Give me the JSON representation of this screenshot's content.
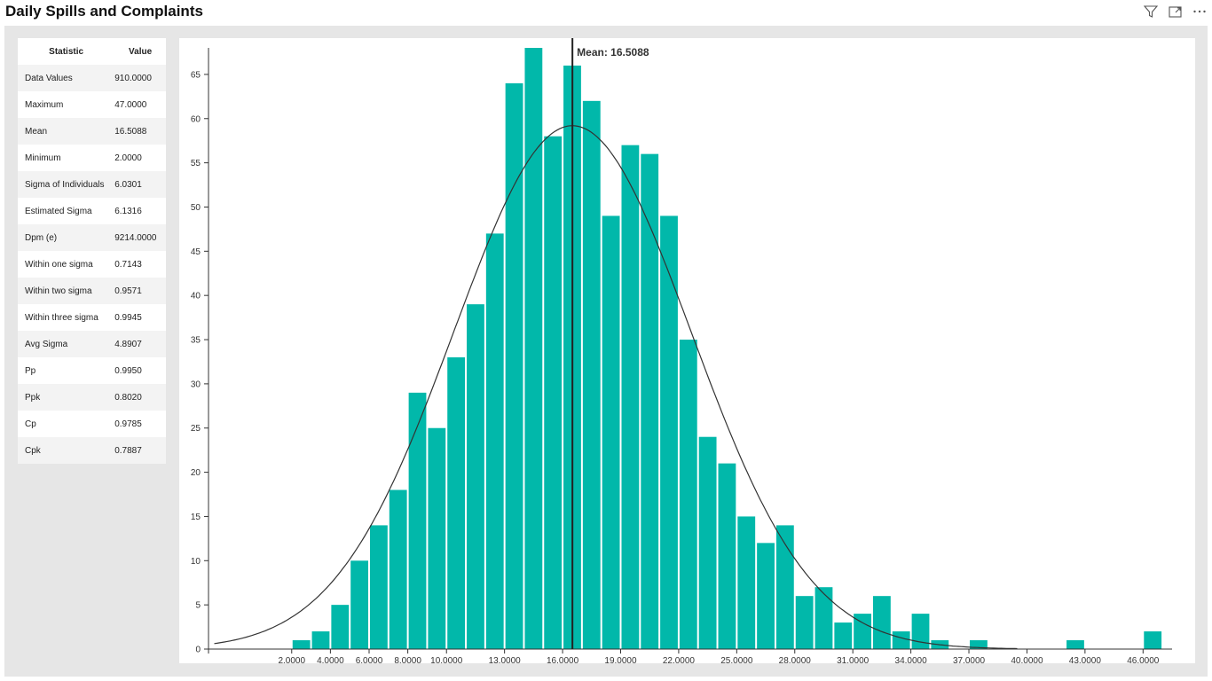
{
  "title": "Daily Spills and Complaints",
  "header_icons": [
    "filter-icon",
    "focus-mode-icon",
    "more-options-icon"
  ],
  "stats_table": {
    "headers": [
      "Statistic",
      "Value"
    ],
    "rows": [
      [
        "Data Values",
        "910.0000"
      ],
      [
        "Maximum",
        "47.0000"
      ],
      [
        "Mean",
        "16.5088"
      ],
      [
        "Minimum",
        "2.0000"
      ],
      [
        "Sigma of Individuals",
        "6.0301"
      ],
      [
        "Estimated Sigma",
        "6.1316"
      ],
      [
        "Dpm (e)",
        "9214.0000"
      ],
      [
        "Within one sigma",
        "0.7143"
      ],
      [
        "Within two sigma",
        "0.9571"
      ],
      [
        "Within three sigma",
        "0.9945"
      ],
      [
        "Avg Sigma",
        "4.8907"
      ],
      [
        "Pp",
        "0.9950"
      ],
      [
        "Ppk",
        "0.8020"
      ],
      [
        "Cp",
        "0.9785"
      ],
      [
        "Cpk",
        "0.7887"
      ]
    ]
  },
  "chart_data": {
    "type": "bar",
    "title": "",
    "xlabel": "",
    "ylabel": "",
    "xlim": [
      -2.3,
      47.5
    ],
    "ylim": [
      0,
      68
    ],
    "y_ticks": [
      0,
      5,
      10,
      15,
      20,
      25,
      30,
      35,
      40,
      45,
      50,
      55,
      60,
      65
    ],
    "x_ticks": [
      {
        "value": 2,
        "label": "2.0000"
      },
      {
        "value": 4,
        "label": "4.0000"
      },
      {
        "value": 6,
        "label": "6.0000"
      },
      {
        "value": 8,
        "label": "8.0000"
      },
      {
        "value": 10,
        "label": "10.0000"
      },
      {
        "value": 13,
        "label": "13.0000"
      },
      {
        "value": 16,
        "label": "16.0000"
      },
      {
        "value": 19,
        "label": "19.0000"
      },
      {
        "value": 22,
        "label": "22.0000"
      },
      {
        "value": 25,
        "label": "25.0000"
      },
      {
        "value": 28,
        "label": "28.0000"
      },
      {
        "value": 31,
        "label": "31.0000"
      },
      {
        "value": 34,
        "label": "34.0000"
      },
      {
        "value": 37,
        "label": "37.0000"
      },
      {
        "value": 40,
        "label": "40.0000"
      },
      {
        "value": 43,
        "label": "43.0000"
      },
      {
        "value": 46,
        "label": "46.0000"
      }
    ],
    "bins": [
      {
        "x0": 2,
        "x1": 3,
        "count": 1
      },
      {
        "x0": 3,
        "x1": 4,
        "count": 2
      },
      {
        "x0": 4,
        "x1": 5,
        "count": 5
      },
      {
        "x0": 5,
        "x1": 6,
        "count": 10
      },
      {
        "x0": 6,
        "x1": 7,
        "count": 14
      },
      {
        "x0": 7,
        "x1": 8,
        "count": 18
      },
      {
        "x0": 8,
        "x1": 9,
        "count": 29
      },
      {
        "x0": 9,
        "x1": 10,
        "count": 25
      },
      {
        "x0": 10,
        "x1": 11,
        "count": 33
      },
      {
        "x0": 11,
        "x1": 12,
        "count": 39
      },
      {
        "x0": 12,
        "x1": 13,
        "count": 47
      },
      {
        "x0": 13,
        "x1": 14,
        "count": 64
      },
      {
        "x0": 14,
        "x1": 15,
        "count": 68
      },
      {
        "x0": 15,
        "x1": 16,
        "count": 58
      },
      {
        "x0": 16,
        "x1": 17,
        "count": 66
      },
      {
        "x0": 17,
        "x1": 18,
        "count": 62
      },
      {
        "x0": 18,
        "x1": 19,
        "count": 49
      },
      {
        "x0": 19,
        "x1": 20,
        "count": 57
      },
      {
        "x0": 20,
        "x1": 21,
        "count": 56
      },
      {
        "x0": 21,
        "x1": 22,
        "count": 49
      },
      {
        "x0": 22,
        "x1": 23,
        "count": 35
      },
      {
        "x0": 23,
        "x1": 24,
        "count": 24
      },
      {
        "x0": 24,
        "x1": 25,
        "count": 21
      },
      {
        "x0": 25,
        "x1": 26,
        "count": 15
      },
      {
        "x0": 26,
        "x1": 27,
        "count": 12
      },
      {
        "x0": 27,
        "x1": 28,
        "count": 14
      },
      {
        "x0": 28,
        "x1": 29,
        "count": 6
      },
      {
        "x0": 29,
        "x1": 30,
        "count": 7
      },
      {
        "x0": 30,
        "x1": 31,
        "count": 3
      },
      {
        "x0": 31,
        "x1": 32,
        "count": 4
      },
      {
        "x0": 32,
        "x1": 33,
        "count": 6
      },
      {
        "x0": 33,
        "x1": 34,
        "count": 2
      },
      {
        "x0": 34,
        "x1": 35,
        "count": 4
      },
      {
        "x0": 35,
        "x1": 36,
        "count": 1
      },
      {
        "x0": 37,
        "x1": 38,
        "count": 1
      },
      {
        "x0": 42,
        "x1": 43,
        "count": 1
      },
      {
        "x0": 46,
        "x1": 47,
        "count": 2
      }
    ],
    "mean": 16.5088,
    "mean_label": "Mean: 16.5088",
    "normal_curve": {
      "mean": 16.5088,
      "peak": 59.2,
      "sigma": 6.1316
    },
    "bar_color": "#01b8aa",
    "curve_color": "#333333",
    "mean_line_color": "#222222"
  }
}
